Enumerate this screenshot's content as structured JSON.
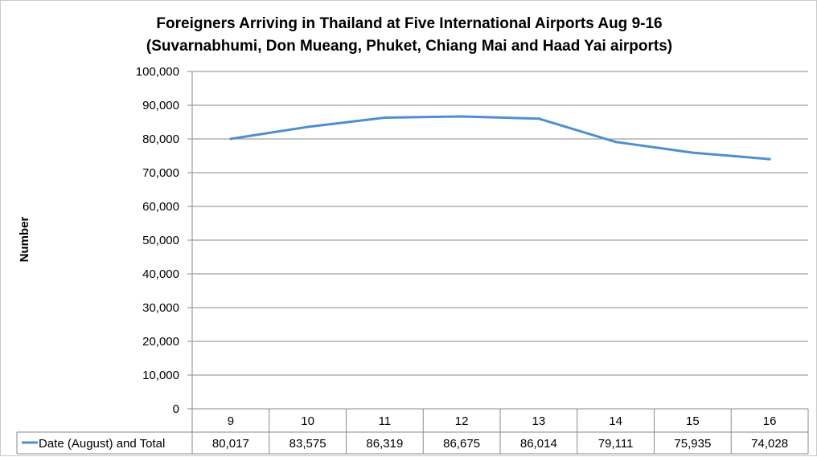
{
  "chart_data": {
    "type": "line",
    "title": "Foreigners Arriving in Thailand at Five International Airports Aug 9-16",
    "subtitle": "(Suvarnabhumi, Don Mueang, Phuket, Chiang Mai and Haad Yai airports)",
    "ylabel": "Number",
    "xlabel": "",
    "ylim": [
      0,
      100000
    ],
    "y_ticks": [
      "0",
      "10,000",
      "20,000",
      "30,000",
      "40,000",
      "50,000",
      "60,000",
      "70,000",
      "80,000",
      "90,000",
      "100,000"
    ],
    "categories": [
      "9",
      "10",
      "11",
      "12",
      "13",
      "14",
      "15",
      "16"
    ],
    "grid": true,
    "legend_position": "bottom-left (data table)",
    "series": [
      {
        "name": "Date (August) and Total",
        "color": "#4f8fce",
        "values": [
          80017,
          83575,
          86319,
          86675,
          86014,
          79111,
          75935,
          74028
        ],
        "value_labels": [
          "80,017",
          "83,575",
          "86,319",
          "86,675",
          "86,014",
          "79,111",
          "75,935",
          "74,028"
        ]
      }
    ]
  }
}
